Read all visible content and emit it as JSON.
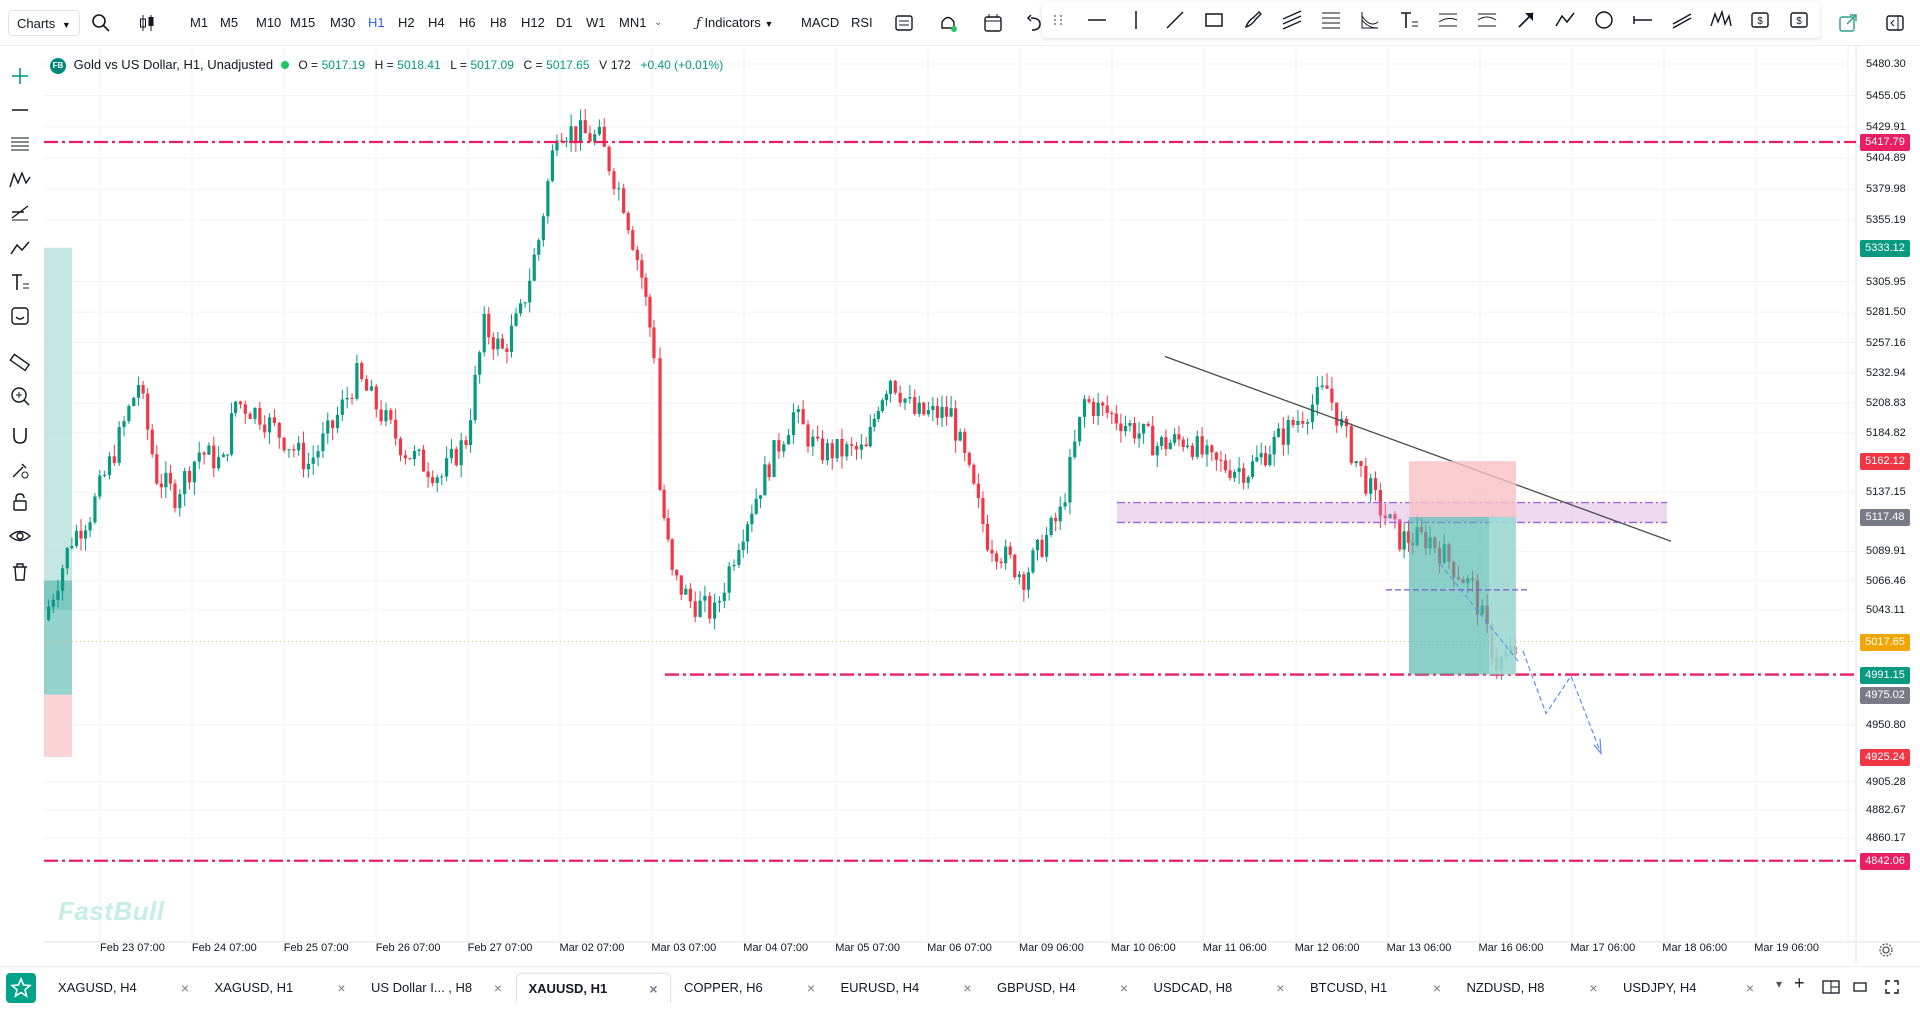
{
  "toolbar": {
    "charts_label": "Charts",
    "timeframes": [
      "M1",
      "M5",
      "M10",
      "M15",
      "M30",
      "H1",
      "H2",
      "H4",
      "H6",
      "H8",
      "H12",
      "D1",
      "W1",
      "MN1"
    ],
    "active_timeframe": "H1",
    "indicators_label": "Indicators",
    "macd_label": "MACD",
    "rsi_label": "RSI"
  },
  "legend": {
    "symbol_badge": "FB",
    "title": "Gold vs US Dollar, H1, Unadjusted",
    "o_label": "O =",
    "o_value": "5017.19",
    "h_label": "H =",
    "h_value": "5018.41",
    "l_label": "L =",
    "l_value": "5017.09",
    "c_label": "C =",
    "c_value": "5017.65",
    "v_label": "V",
    "v_value": "172",
    "change": "+0.40 (+0.01%)"
  },
  "price_axis": {
    "labels": [
      "5480.30",
      "5455.05",
      "5429.91",
      "5404.89",
      "5379.98",
      "5355.19",
      "5305.95",
      "5281.50",
      "5257.16",
      "5232.94",
      "5208.83",
      "5184.82",
      "5137.15",
      "5089.91",
      "5066.46",
      "5043.11",
      "4950.80",
      "4905.28",
      "4882.67",
      "4860.17"
    ],
    "tags": [
      {
        "value": "5417.79",
        "color": "#e91e63"
      },
      {
        "value": "5333.12",
        "color": "#089981"
      },
      {
        "value": "5162.12",
        "color": "#f23645"
      },
      {
        "value": "5117.48",
        "color": "#787b86"
      },
      {
        "value": "5017.65",
        "color": "#f0a500"
      },
      {
        "value": "4991.15",
        "color": "#089981"
      },
      {
        "value": "4975.02",
        "color": "#787b86"
      },
      {
        "value": "4925.24",
        "color": "#f23645"
      },
      {
        "value": "4842.06",
        "color": "#e91e63"
      }
    ]
  },
  "time_axis": [
    "Feb 23 07:00",
    "Feb 24 07:00",
    "Feb 25 07:00",
    "Feb 26 07:00",
    "Feb 27 07:00",
    "Mar 02 07:00",
    "Mar 03 07:00",
    "Mar 04 07:00",
    "Mar 05 07:00",
    "Mar 06 07:00",
    "Mar 09 06:00",
    "Mar 10 06:00",
    "Mar 11 06:00",
    "Mar 12 06:00",
    "Mar 13 06:00",
    "Mar 16 06:00",
    "Mar 17 06:00",
    "Mar 18 06:00",
    "Mar 19 06:00"
  ],
  "watermark": "FastBull",
  "tabs": [
    {
      "label": "XAGUSD, H4",
      "active": false
    },
    {
      "label": "XAGUSD, H1",
      "active": false
    },
    {
      "label": "US Dollar I... , H8",
      "active": false
    },
    {
      "label": "XAUUSD, H1",
      "active": true
    },
    {
      "label": "COPPER, H6",
      "active": false
    },
    {
      "label": "EURUSD, H4",
      "active": false
    },
    {
      "label": "GBPUSD, H4",
      "active": false
    },
    {
      "label": "USDCAD, H8",
      "active": false
    },
    {
      "label": "BTCUSD, H1",
      "active": false
    },
    {
      "label": "NZDUSD, H8",
      "active": false
    },
    {
      "label": "USDJPY, H4",
      "active": false
    }
  ],
  "colors": {
    "up": "#089981",
    "down": "#f23645",
    "level_line": "#e91e63",
    "zone": "#ce93d8"
  },
  "icons": {
    "left_toolbar": [
      "crosshair-icon",
      "horizontal-line-icon",
      "fib-icon",
      "pattern-icon",
      "projection-icon",
      "trend-icon",
      "text-icon",
      "emoji-icon",
      "ruler-icon",
      "zoom-icon",
      "magnet-icon",
      "lock-drawings-icon",
      "lock-icon",
      "eye-icon",
      "trash-icon"
    ],
    "drawing_toolbar": [
      "drag-handle-icon",
      "horizontal-line-icon",
      "vertical-line-icon",
      "trend-line-icon",
      "rectangle-icon",
      "brush-icon",
      "parallel-channel-icon",
      "fib-retracement-icon",
      "fib-fan-icon",
      "text-tool-icon",
      "pitchfork-icon",
      "gann-icon",
      "arrow-icon",
      "path-icon",
      "circle-icon",
      "ray-icon",
      "cross-line-icon",
      "elliott-wave-icon",
      "long-position-icon",
      "short-position-icon"
    ]
  }
}
